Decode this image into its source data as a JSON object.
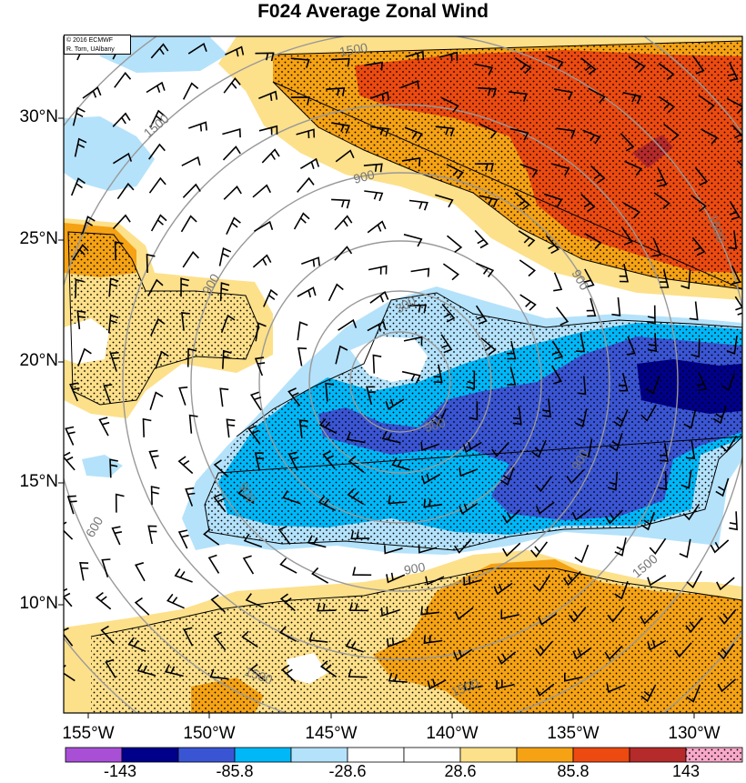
{
  "title": "F024 Average Zonal Wind",
  "credit": {
    "line1": "© 2016 ECMWF",
    "line2": "R. Torn, UAlbany"
  },
  "lat_labels": [
    "30°N",
    "25°N",
    "20°N",
    "15°N",
    "10°N"
  ],
  "lon_labels": [
    "155°W",
    "150°W",
    "145°W",
    "140°W",
    "135°W",
    "130°W"
  ],
  "contour_labels": [
    "1500",
    "1500",
    "900",
    "900",
    "900",
    "300",
    "900",
    "900",
    "900",
    "900",
    "1500",
    "1500",
    "1500",
    "1500",
    "600"
  ],
  "colorbar": {
    "labels": [
      "-143",
      "-85.8",
      "-28.6",
      "28.6",
      "85.8",
      "143"
    ],
    "colors": [
      "#a84fd6",
      "#00008b",
      "#3a55d4",
      "#00b7f7",
      "#b4e2fb",
      "#ffffff",
      "#ffffff",
      "#fde08a",
      "#f5a214",
      "#ec4a10",
      "#b52a2a",
      "#f8a8c8"
    ]
  },
  "field_colors": {
    "strong_east": "#00008b",
    "east2": "#3a55d4",
    "east1": "#00b7f7",
    "east0": "#b4e2fb",
    "west0": "#fde08a",
    "west1": "#f5a214",
    "west2": "#ec4a10",
    "west3": "#b52a2a"
  }
}
